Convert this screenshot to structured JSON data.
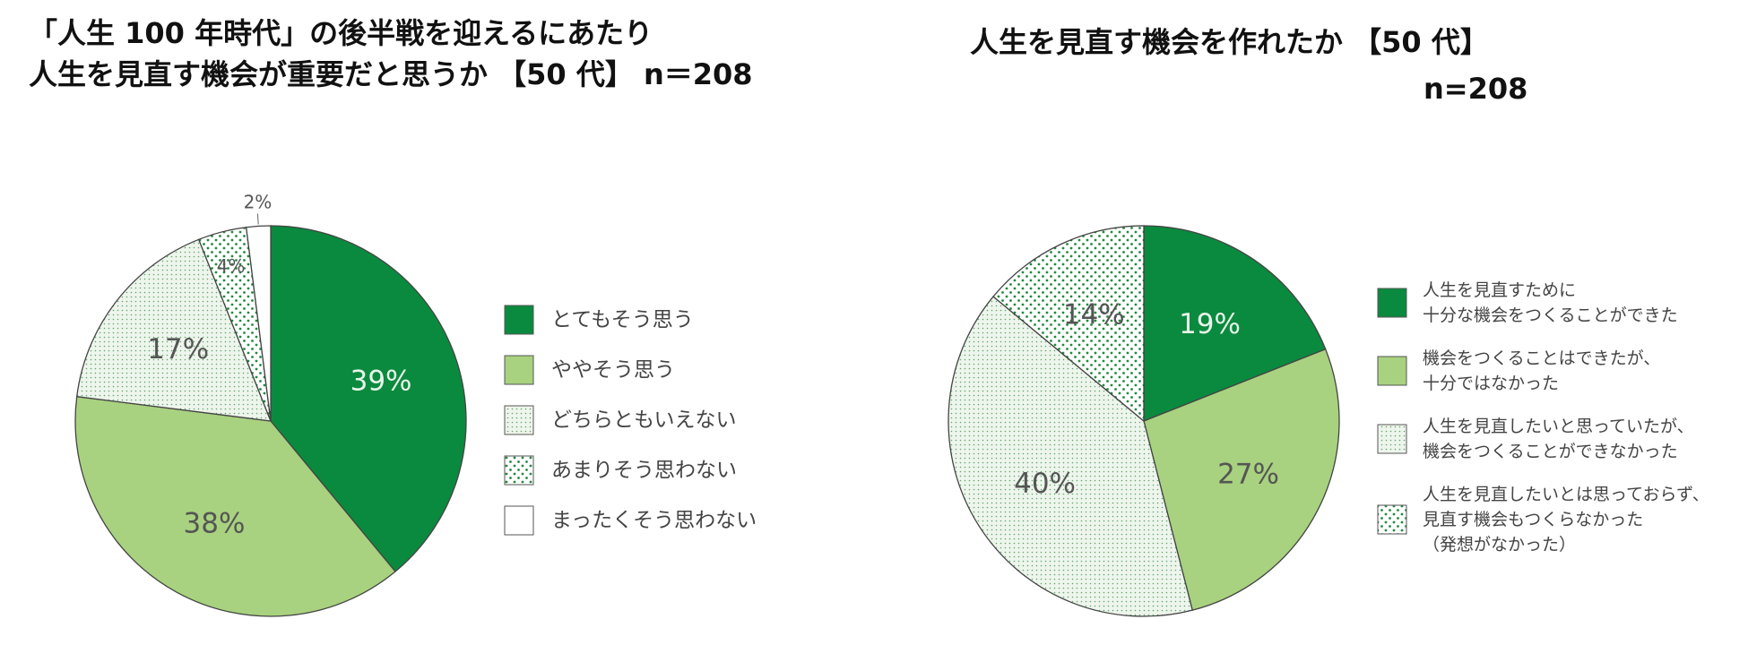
{
  "left": {
    "title_lines": [
      "「人生 100 年時代」の後半戦を迎えるにあたり",
      "人生を見直す機会が重要だと思うか 【50 代】 n＝208"
    ]
  },
  "right": {
    "title_lines": [
      "人生を見直す機会を作れたか 【50 代】",
      "n=208"
    ]
  },
  "colors": {
    "dark_green": "#0a8a3e",
    "light_green": "#a8d27f",
    "pattern_fill": "#eef5ec",
    "pattern_dot": "#1f8a3e",
    "white": "#ffffff",
    "stroke": "#444444"
  },
  "chart_data": [
    {
      "type": "pie",
      "title": "「人生 100 年時代」の後半戦を迎えるにあたり 人生を見直す機会が重要だと思うか 【50 代】 n＝208",
      "legend_position": "right",
      "slices": [
        {
          "label": "とてもそう思う",
          "value": 39,
          "pct_label": "39%",
          "style": "dark"
        },
        {
          "label": "ややそう思う",
          "value": 38,
          "pct_label": "38%",
          "style": "light"
        },
        {
          "label": "どちらともいえない",
          "value": 17,
          "pct_label": "17%",
          "style": "fine-dots"
        },
        {
          "label": "あまりそう思わない",
          "value": 4,
          "pct_label": "4%",
          "style": "sparse-dots"
        },
        {
          "label": "まったくそう思わない",
          "value": 2,
          "pct_label": "2%",
          "style": "white"
        }
      ]
    },
    {
      "type": "pie",
      "title": "人生を見直す機会を作れたか 【50 代】 n=208",
      "legend_position": "right",
      "slices": [
        {
          "label_lines": [
            "人生を見直すために",
            "十分な機会をつくることができた"
          ],
          "value": 19,
          "pct_label": "19%",
          "style": "dark"
        },
        {
          "label_lines": [
            "機会をつくることはできたが、",
            "十分ではなかった"
          ],
          "value": 27,
          "pct_label": "27%",
          "style": "light"
        },
        {
          "label_lines": [
            "人生を見直したいと思っていたが、",
            "機会をつくることができなかった"
          ],
          "value": 40,
          "pct_label": "40%",
          "style": "fine-dots"
        },
        {
          "label_lines": [
            "人生を見直したいとは思っておらず、",
            "見直す機会もつくらなかった",
            "（発想がなかった）"
          ],
          "value": 14,
          "pct_label": "14%",
          "style": "sparse-dots"
        }
      ]
    }
  ]
}
